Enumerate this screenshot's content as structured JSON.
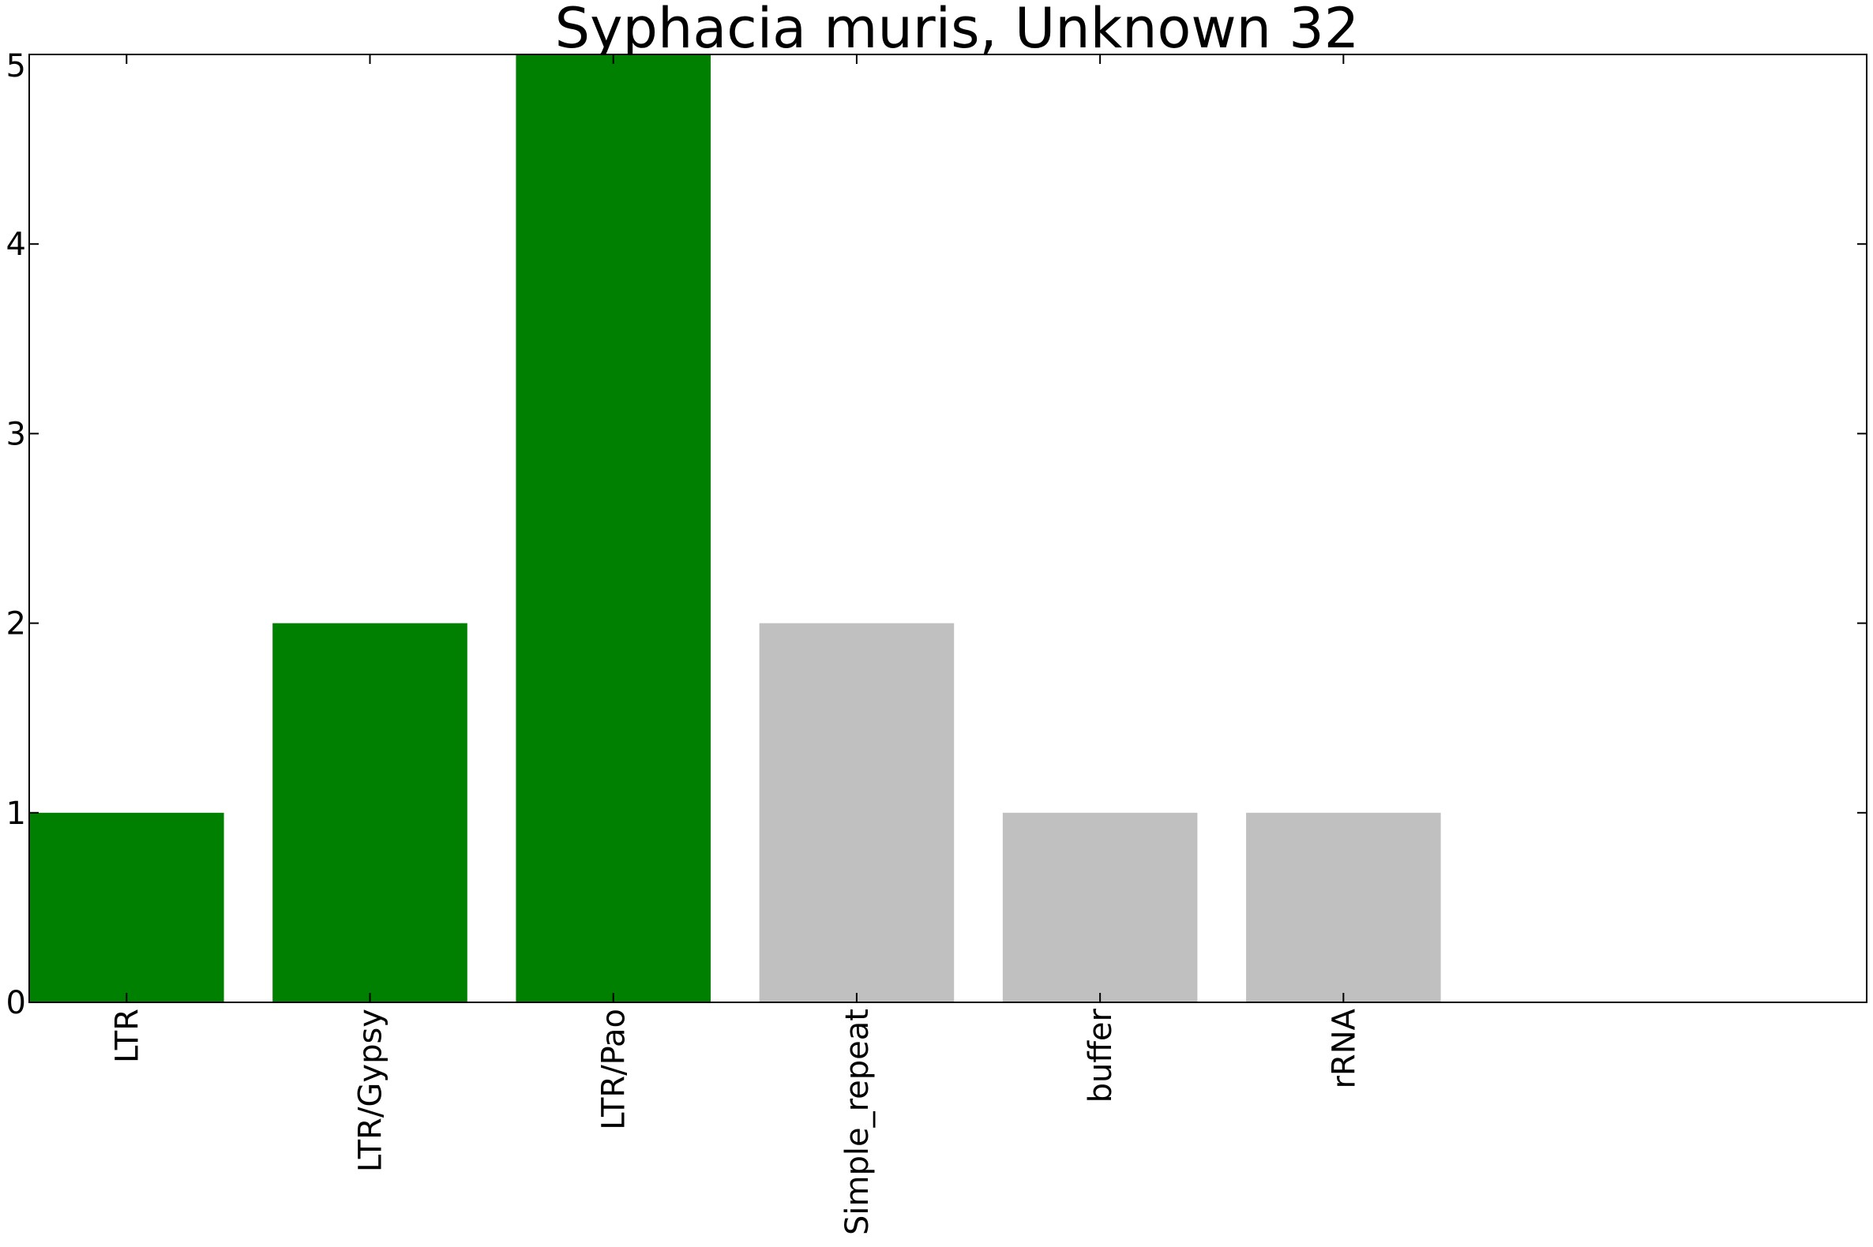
{
  "chart_data": {
    "type": "bar",
    "title": "Syphacia muris, Unknown 32",
    "xlabel": "",
    "ylabel": "",
    "categories": [
      "LTR",
      "LTR/Gypsy",
      "LTR/Pao",
      "Simple_repeat",
      "buffer",
      "rRNA"
    ],
    "values": [
      1,
      2,
      5,
      2,
      1,
      1
    ],
    "colors": [
      "#008000",
      "#008000",
      "#008000",
      "#c0c0c0",
      "#c0c0c0",
      "#c0c0c0"
    ],
    "ylim": [
      0,
      5
    ],
    "xlim": [
      0,
      7.55
    ],
    "yticks": [
      0,
      1,
      2,
      3,
      4,
      5
    ],
    "bar_width": 0.8,
    "grid": false,
    "legend": "none"
  }
}
